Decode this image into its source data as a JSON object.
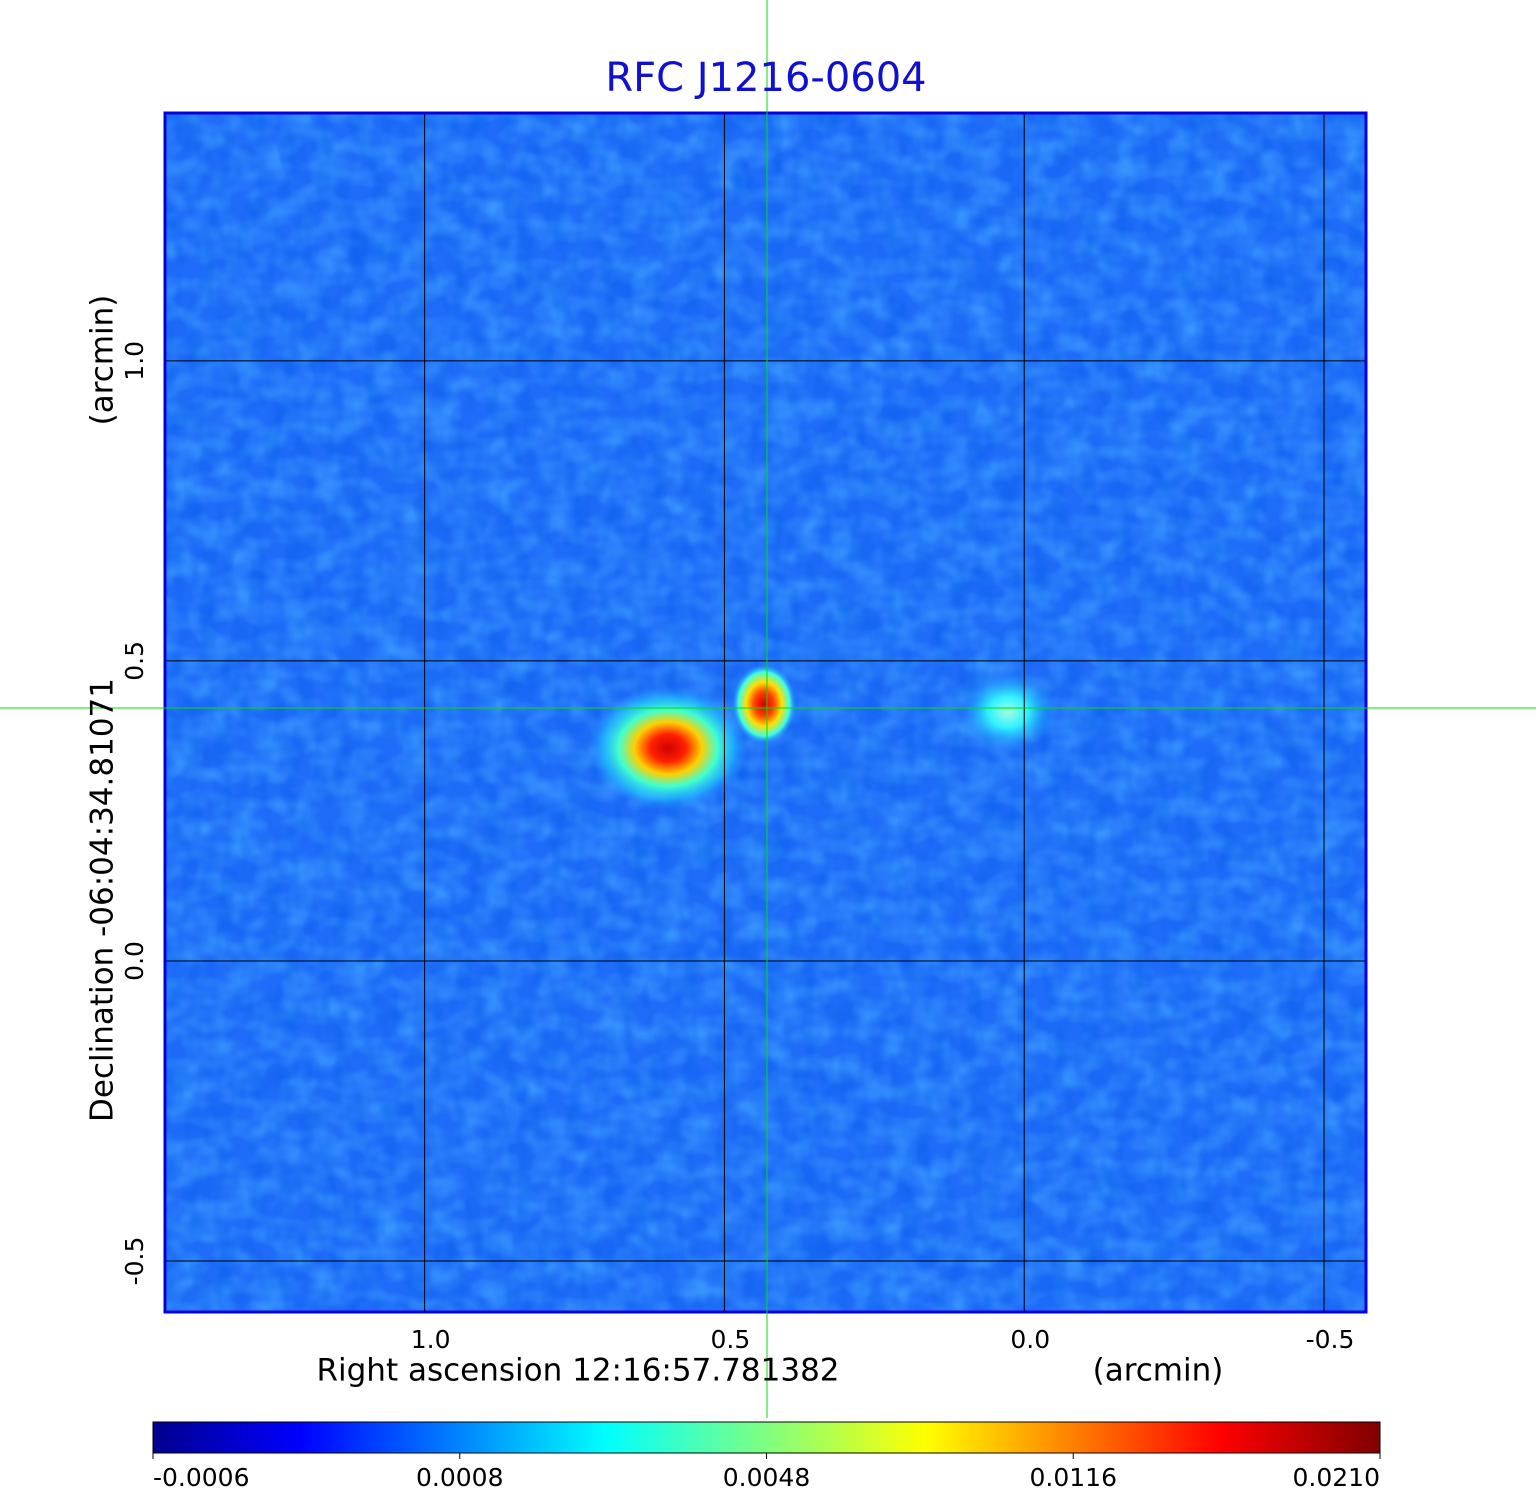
{
  "chart_data": {
    "type": "image",
    "title": "RFC J1216-0604",
    "x_label": "Right ascension  12:16:57.781382",
    "x_unit": "(arcmin)",
    "y_label": "Declination  -06:04:34.81071",
    "y_unit": "(arcmin)",
    "xlim": [
      1.433,
      -0.57
    ],
    "ylim": [
      -0.585,
      1.413
    ],
    "xticks": [
      {
        "value": 1.0,
        "label": "1.0"
      },
      {
        "value": 0.5,
        "label": "0.5"
      },
      {
        "value": 0.0,
        "label": "0.0"
      },
      {
        "value": -0.5,
        "label": "-0.5"
      }
    ],
    "yticks": [
      {
        "value": 1.0,
        "label": "1.0"
      },
      {
        "value": 0.5,
        "label": "0.5"
      },
      {
        "value": 0.0,
        "label": "0.0"
      },
      {
        "value": -0.5,
        "label": "-0.5"
      }
    ],
    "grid": true,
    "colorbar_ticks": [
      -0.0006,
      0.0008,
      0.0048,
      0.0116,
      {
        "value": 0.021,
        "label": "0.0210"
      }
    ]
  }
}
